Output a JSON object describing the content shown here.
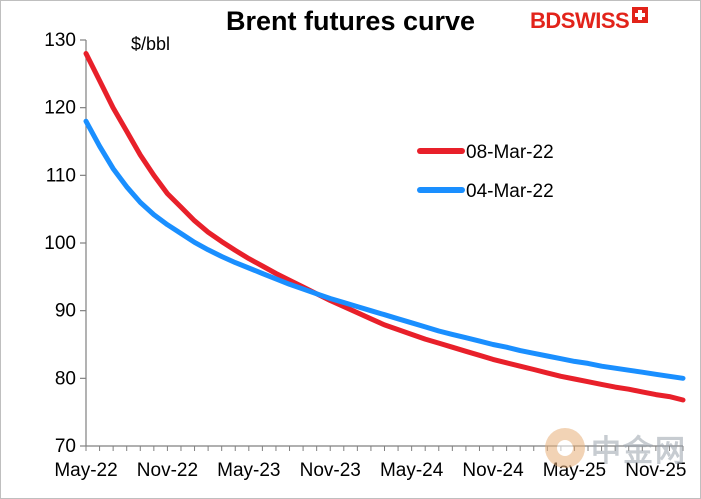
{
  "chart_data": {
    "type": "line",
    "title": "Brent futures curve",
    "unit_label": "$/bbl",
    "ylim": [
      70,
      130
    ],
    "yticks": [
      70,
      80,
      90,
      100,
      110,
      120,
      130
    ],
    "xticks": [
      "May-22",
      "Nov-22",
      "May-23",
      "Nov-23",
      "May-24",
      "Nov-24",
      "May-25",
      "Nov-25"
    ],
    "xtick_month_index": [
      0,
      6,
      12,
      18,
      24,
      30,
      36,
      42
    ],
    "x": [
      0,
      1,
      2,
      3,
      4,
      5,
      6,
      7,
      8,
      9,
      10,
      11,
      12,
      13,
      14,
      15,
      16,
      17,
      18,
      19,
      20,
      21,
      22,
      23,
      24,
      25,
      26,
      27,
      28,
      29,
      30,
      31,
      32,
      33,
      34,
      35,
      36,
      37,
      38,
      39,
      40,
      41,
      42,
      43,
      44
    ],
    "x_unit": "months from May-22",
    "legend_position": "center-right",
    "grid": false,
    "series": [
      {
        "name": "08-Mar-22",
        "color": "#e8202a",
        "values": [
          128.0,
          124.0,
          120.0,
          116.5,
          113.0,
          110.0,
          107.3,
          105.3,
          103.3,
          101.6,
          100.2,
          98.9,
          97.7,
          96.6,
          95.5,
          94.5,
          93.5,
          92.5,
          91.5,
          90.6,
          89.7,
          88.8,
          87.9,
          87.2,
          86.5,
          85.8,
          85.2,
          84.6,
          84.0,
          83.4,
          82.8,
          82.3,
          81.8,
          81.3,
          80.8,
          80.3,
          79.9,
          79.5,
          79.1,
          78.7,
          78.4,
          78.0,
          77.6,
          77.3,
          76.8
        ]
      },
      {
        "name": "04-Mar-22",
        "color": "#1a8fff",
        "values": [
          118.0,
          114.3,
          111.0,
          108.3,
          106.0,
          104.2,
          102.7,
          101.4,
          100.1,
          99.0,
          98.0,
          97.1,
          96.3,
          95.5,
          94.7,
          93.9,
          93.2,
          92.5,
          91.8,
          91.2,
          90.6,
          90.0,
          89.4,
          88.8,
          88.2,
          87.6,
          87.0,
          86.5,
          86.0,
          85.5,
          85.0,
          84.6,
          84.1,
          83.7,
          83.3,
          82.9,
          82.5,
          82.2,
          81.8,
          81.5,
          81.2,
          80.9,
          80.6,
          80.3,
          80.0
        ]
      }
    ]
  },
  "logo": {
    "part1": "BD",
    "part2": "SWISS"
  },
  "watermark": {
    "text": "中金网"
  }
}
